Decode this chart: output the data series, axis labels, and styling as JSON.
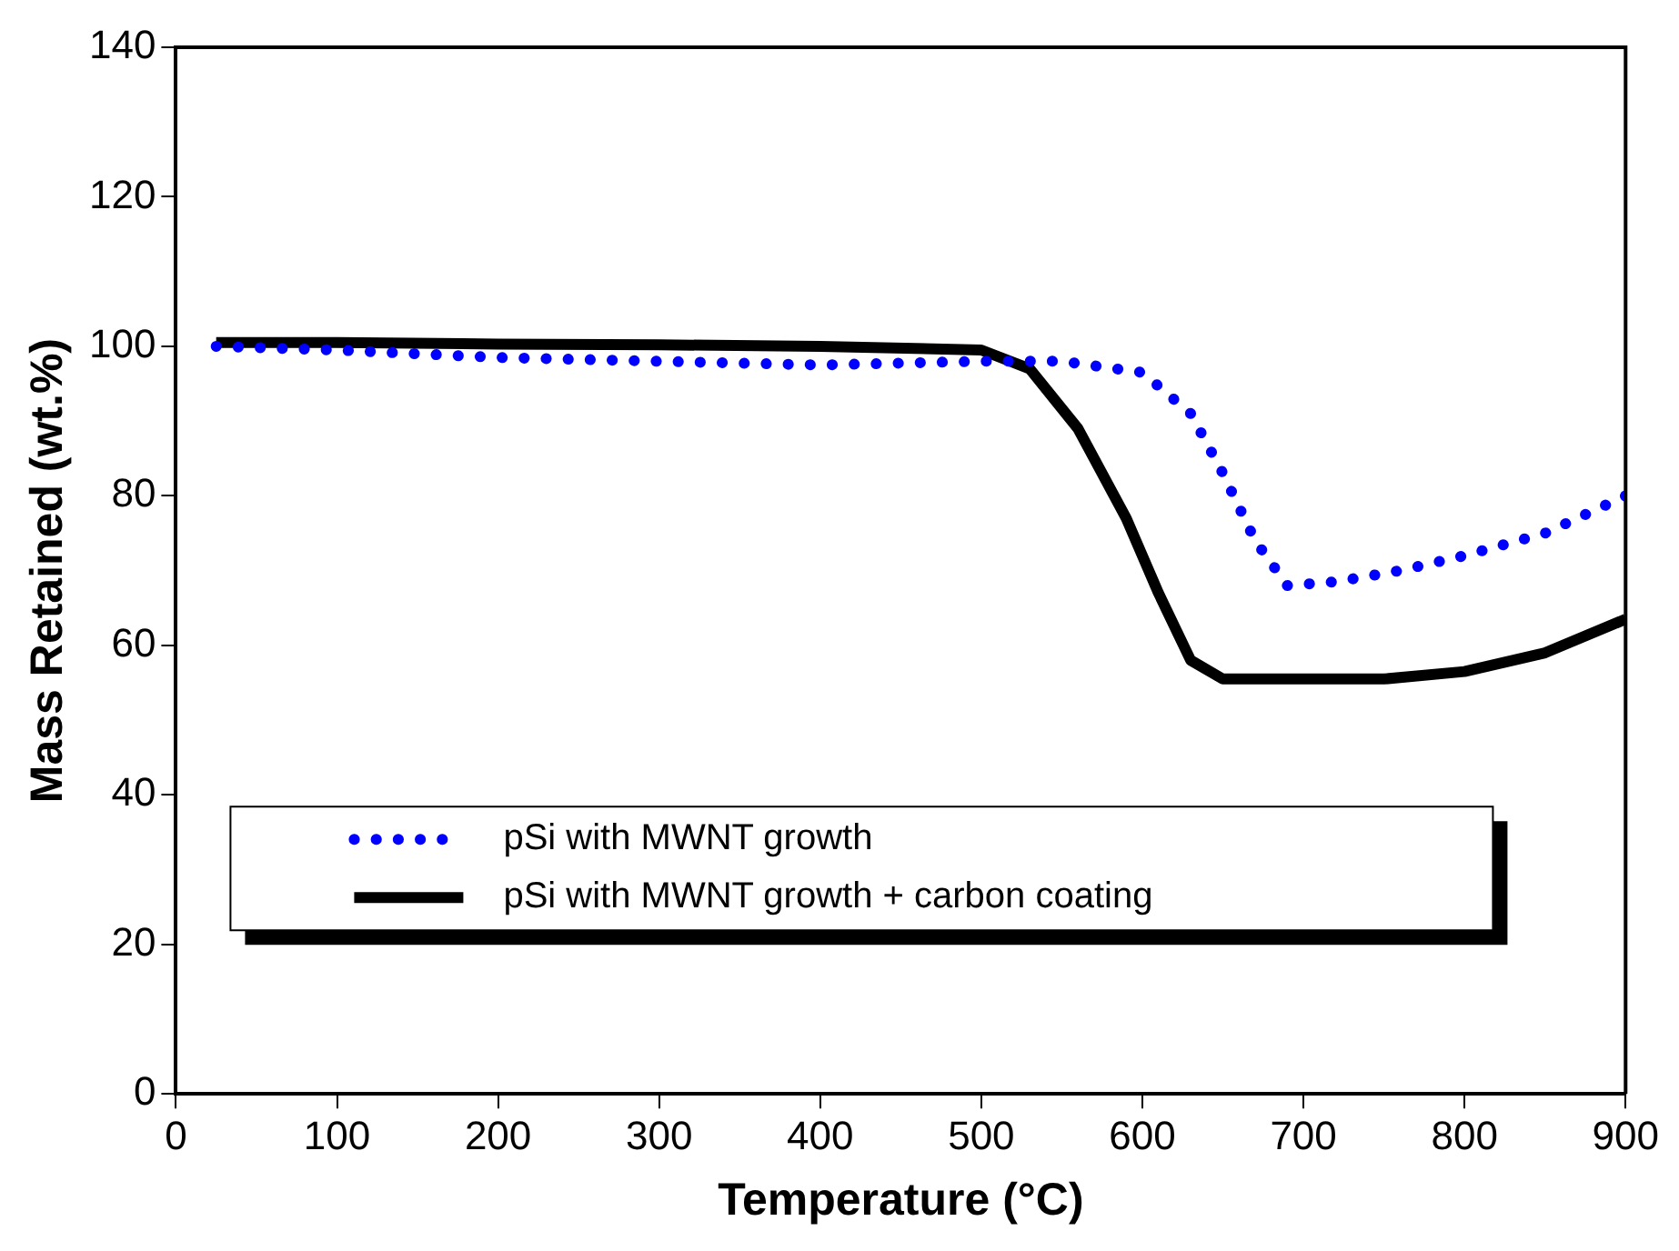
{
  "chart_data": {
    "type": "line",
    "xlabel": "Temperature (°C)",
    "ylabel": "Mass Retained (wt.%)",
    "xlim": [
      0,
      900
    ],
    "xticks": [
      0,
      100,
      200,
      300,
      400,
      500,
      600,
      700,
      800,
      900
    ],
    "ylim": [
      0,
      140
    ],
    "yticks": [
      0,
      20,
      40,
      60,
      80,
      100,
      120,
      140
    ],
    "grid": false,
    "legend": "bottom",
    "marker": "none",
    "series": [
      {
        "name": "pSi with MWNT growth",
        "color": "#0000ff",
        "line_style": "dotted",
        "x": [
          25,
          100,
          200,
          300,
          400,
          500,
          550,
          600,
          630,
          650,
          670,
          690,
          720,
          760,
          800,
          850,
          900
        ],
        "values": [
          100,
          99.5,
          98.5,
          98,
          97.5,
          98,
          98,
          96.5,
          91,
          83,
          74,
          68,
          68.5,
          70,
          72,
          75,
          80
        ]
      },
      {
        "name": "pSi with MWNT growth + carbon coating",
        "color": "#000000",
        "line_style": "solid",
        "x": [
          25,
          100,
          200,
          300,
          400,
          500,
          530,
          560,
          590,
          610,
          630,
          650,
          700,
          750,
          800,
          850,
          900
        ],
        "values": [
          100.5,
          100.5,
          100.3,
          100.2,
          100,
          99.5,
          97,
          89,
          77,
          67,
          58,
          55.5,
          55.5,
          55.5,
          56.5,
          59,
          63.5
        ]
      }
    ]
  }
}
